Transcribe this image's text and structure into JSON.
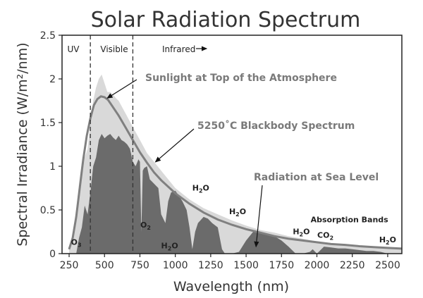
{
  "chart_data": {
    "type": "area",
    "title": "Solar Radiation Spectrum",
    "xlabel": "Wavelength (nm)",
    "ylabel": "Spectral Irradiance (W/m²/nm)",
    "xlim": [
      200,
      2600
    ],
    "ylim": [
      0,
      2.5
    ],
    "x_ticks": [
      250,
      500,
      750,
      1000,
      1250,
      1500,
      1750,
      2000,
      2250,
      2500
    ],
    "y_ticks": [
      0,
      0.5,
      1,
      1.5,
      2,
      2.5
    ],
    "y_tick_labels": [
      "0",
      "0.5",
      "1",
      "1.5",
      "2",
      "2.5"
    ],
    "regions": [
      {
        "label": "UV",
        "x_start": 200,
        "x_end": 400
      },
      {
        "label": "Visible",
        "x_start": 400,
        "x_end": 700
      },
      {
        "label": "Infrared",
        "x_start": 700,
        "x_end": 2600
      }
    ],
    "boundaries": [
      400,
      700
    ],
    "series": [
      {
        "name": "Sunlight at Top of the Atmosphere",
        "style": "fill",
        "color": "#d9d9d9",
        "x": [
          250,
          280,
          300,
          320,
          340,
          360,
          380,
          400,
          420,
          440,
          460,
          480,
          500,
          520,
          540,
          560,
          580,
          600,
          650,
          700,
          750,
          800,
          900,
          1000,
          1100,
          1200,
          1300,
          1400,
          1500,
          1600,
          1700,
          1800,
          1900,
          2000,
          2100,
          2200,
          2300,
          2400,
          2500,
          2600
        ],
        "values": [
          0.05,
          0.2,
          0.5,
          0.8,
          1.05,
          1.1,
          1.2,
          1.5,
          1.75,
          1.9,
          2.0,
          2.05,
          1.95,
          1.85,
          1.85,
          1.82,
          1.78,
          1.75,
          1.6,
          1.45,
          1.3,
          1.15,
          0.95,
          0.75,
          0.62,
          0.52,
          0.45,
          0.38,
          0.32,
          0.27,
          0.24,
          0.2,
          0.17,
          0.14,
          0.12,
          0.1,
          0.09,
          0.08,
          0.07,
          0.06
        ]
      },
      {
        "name": "5250˚C Blackbody Spectrum",
        "style": "line",
        "color": "#808080",
        "x": [
          250,
          275,
          300,
          325,
          350,
          375,
          400,
          425,
          450,
          475,
          500,
          525,
          550,
          600,
          650,
          700,
          750,
          800,
          850,
          900,
          1000,
          1100,
          1200,
          1300,
          1400,
          1500,
          1600,
          1700,
          1800,
          1900,
          2000,
          2100,
          2200,
          2300,
          2400,
          2500,
          2600
        ],
        "values": [
          0.05,
          0.18,
          0.42,
          0.75,
          1.08,
          1.35,
          1.55,
          1.7,
          1.77,
          1.8,
          1.79,
          1.76,
          1.7,
          1.58,
          1.44,
          1.3,
          1.16,
          1.04,
          0.93,
          0.84,
          0.69,
          0.57,
          0.47,
          0.39,
          0.33,
          0.28,
          0.24,
          0.2,
          0.17,
          0.15,
          0.13,
          0.11,
          0.1,
          0.085,
          0.075,
          0.065,
          0.057
        ]
      },
      {
        "name": "Radiation at Sea Level",
        "style": "fill",
        "color": "#6b6b6b",
        "x": [
          300,
          320,
          340,
          360,
          380,
          400,
          420,
          440,
          460,
          480,
          500,
          520,
          540,
          560,
          580,
          600,
          620,
          640,
          660,
          680,
          700,
          720,
          740,
          750,
          760,
          770,
          780,
          800,
          820,
          850,
          880,
          900,
          930,
          950,
          970,
          1000,
          1030,
          1050,
          1080,
          1100,
          1120,
          1140,
          1160,
          1200,
          1230,
          1260,
          1300,
          1330,
          1350,
          1380,
          1400,
          1450,
          1500,
          1550,
          1600,
          1650,
          1700,
          1750,
          1800,
          1850,
          1870,
          1900,
          1950,
          1970,
          2000,
          2050,
          2100,
          2150,
          2200,
          2250,
          2300,
          2350,
          2400,
          2450,
          2500,
          2550,
          2600
        ],
        "values": [
          0.0,
          0.18,
          0.3,
          0.55,
          0.45,
          0.7,
          1.0,
          1.1,
          1.3,
          1.37,
          1.32,
          1.35,
          1.37,
          1.33,
          1.3,
          1.35,
          1.3,
          1.28,
          1.25,
          1.2,
          1.05,
          1.0,
          1.08,
          1.05,
          0.25,
          0.95,
          0.98,
          1.0,
          0.85,
          0.8,
          0.75,
          0.45,
          0.35,
          0.6,
          0.7,
          0.72,
          0.65,
          0.6,
          0.5,
          0.3,
          0.05,
          0.25,
          0.35,
          0.42,
          0.4,
          0.35,
          0.3,
          0.05,
          0.0,
          0.0,
          0.0,
          0.02,
          0.15,
          0.25,
          0.25,
          0.22,
          0.2,
          0.15,
          0.08,
          0.0,
          0.0,
          0.0,
          0.02,
          0.05,
          0.0,
          0.08,
          0.07,
          0.06,
          0.06,
          0.05,
          0.04,
          0.03,
          0.03,
          0.02,
          0.0,
          0.0,
          0.0
        ]
      }
    ],
    "annotations": [
      {
        "text": "Sunlight at Top of the Atmosphere",
        "points_to": [
          520,
          1.78
        ]
      },
      {
        "text": "5250˚C Blackbody Spectrum",
        "points_to": [
          860,
          1.05
        ]
      },
      {
        "text": "Radiation at Sea Level",
        "points_to": [
          1570,
          0.08
        ]
      }
    ],
    "absorption_labels": [
      {
        "base": "O",
        "sub": "3",
        "x": 300,
        "y": 0.1
      },
      {
        "base": "O",
        "sub": "2",
        "x": 790,
        "y": 0.3
      },
      {
        "base": "H",
        "sub": "2",
        "after": "O",
        "x": 960,
        "y": 0.06
      },
      {
        "base": "H",
        "sub": "2",
        "after": "O",
        "x": 1180,
        "y": 0.72
      },
      {
        "base": "H",
        "sub": "2",
        "after": "O",
        "x": 1440,
        "y": 0.45
      },
      {
        "base": "H",
        "sub": "2",
        "after": "O",
        "x": 1890,
        "y": 0.22
      },
      {
        "base": "CO",
        "sub": "2",
        "x": 2060,
        "y": 0.18
      },
      {
        "base": "H",
        "sub": "2",
        "after": "O",
        "x": 2500,
        "y": 0.13
      }
    ],
    "absorption_title": {
      "text": "Absorption Bands",
      "x": 2230,
      "y": 0.36
    },
    "infrared_arrow_label": "→"
  }
}
